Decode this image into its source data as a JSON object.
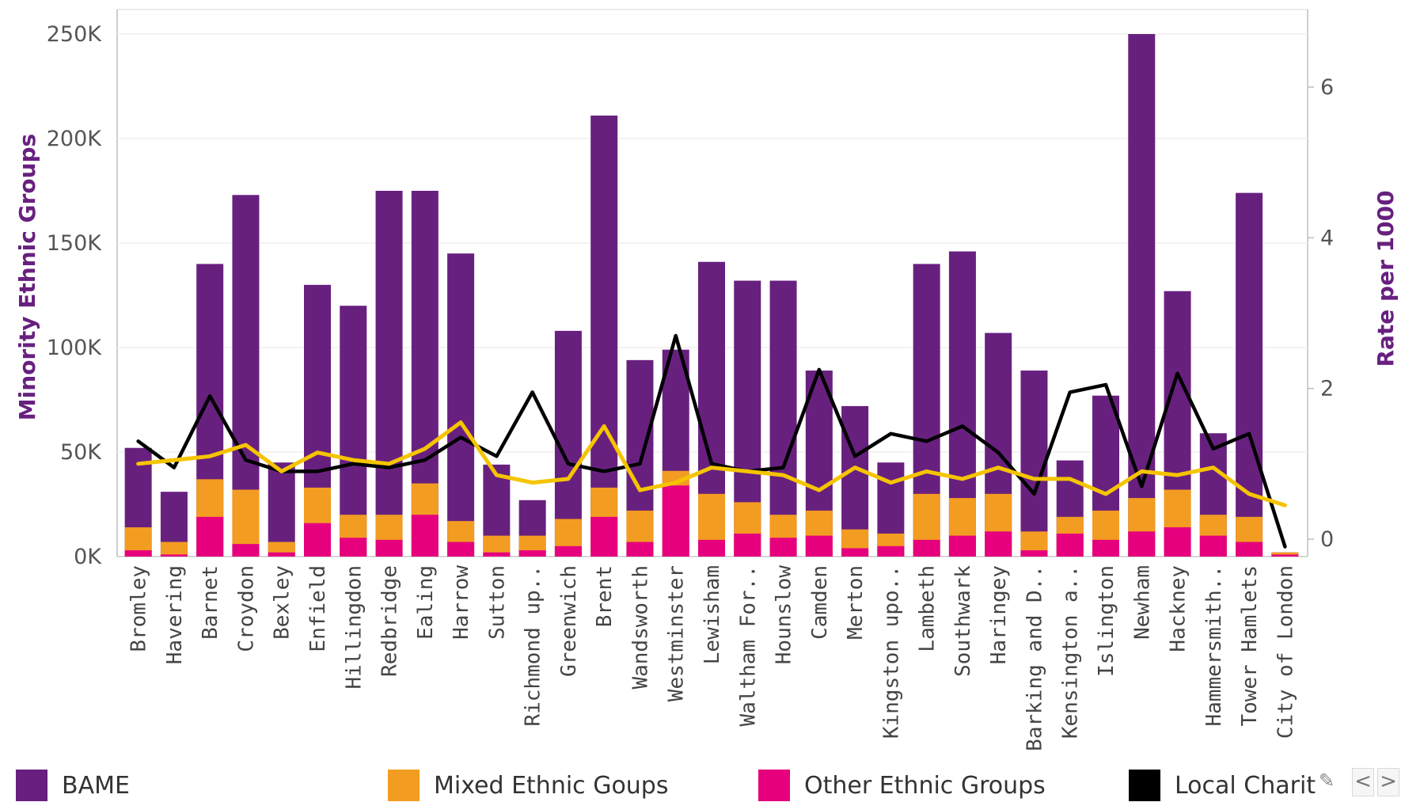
{
  "chart_data": {
    "type": "bar",
    "stacked": true,
    "categories": [
      "Bromley",
      "Havering",
      "Barnet",
      "Croydon",
      "Bexley",
      "Enfield",
      "Hillingdon",
      "Redbridge",
      "Ealing",
      "Harrow",
      "Sutton",
      "Richmond up..",
      "Greenwich",
      "Brent",
      "Wandsworth",
      "Westminster",
      "Lewisham",
      "Waltham For..",
      "Hounslow",
      "Camden",
      "Merton",
      "Kingston upo..",
      "Lambeth",
      "Southwark",
      "Haringey",
      "Barking and D..",
      "Kensington a..",
      "Islington",
      "Newham",
      "Hackney",
      "Hammersmith..",
      "Tower Hamlets",
      "City of London"
    ],
    "ylabel_left": "Minority Ethnic Groups",
    "ylabel_right": "Rate per 1000",
    "ylim_left": [
      0,
      250000
    ],
    "ylim_right": [
      0,
      6.7
    ],
    "yticks_left": [
      "0K",
      "50K",
      "100K",
      "150K",
      "200K",
      "250K"
    ],
    "yticks_right": [
      "0",
      "2",
      "4",
      "6"
    ],
    "grid": true,
    "legend_position": "bottom",
    "bar_series": [
      {
        "name": "BAME",
        "color": "#68207f",
        "values": [
          52000,
          31000,
          140000,
          173000,
          45000,
          130000,
          120000,
          175000,
          175000,
          145000,
          44000,
          27000,
          108000,
          211000,
          94000,
          99000,
          141000,
          132000,
          132000,
          89000,
          72000,
          45000,
          140000,
          146000,
          107000,
          89000,
          46000,
          77000,
          250000,
          127000,
          59000,
          174000,
          2000
        ]
      },
      {
        "name": "Mixed Ethnic Goups",
        "color": "#f39c22",
        "values": [
          14000,
          7000,
          37000,
          32000,
          7000,
          33000,
          20000,
          20000,
          35000,
          17000,
          10000,
          10000,
          18000,
          33000,
          22000,
          41000,
          30000,
          26000,
          20000,
          22000,
          13000,
          11000,
          30000,
          28000,
          30000,
          12000,
          19000,
          22000,
          28000,
          32000,
          20000,
          19000,
          2000
        ]
      },
      {
        "name": "Other Ethnic Groups",
        "color": "#e6007e",
        "values": [
          3000,
          1000,
          19000,
          6000,
          2000,
          16000,
          9000,
          8000,
          20000,
          7000,
          2000,
          3000,
          5000,
          19000,
          7000,
          34000,
          8000,
          11000,
          9000,
          10000,
          4000,
          5000,
          8000,
          10000,
          12000,
          3000,
          11000,
          8000,
          12000,
          14000,
          10000,
          7000,
          1000
        ]
      }
    ],
    "line_series": [
      {
        "name": "Local Charity",
        "color": "#000000",
        "axis": "right",
        "values": [
          1.3,
          0.95,
          1.9,
          1.05,
          0.9,
          0.9,
          1.0,
          0.95,
          1.05,
          1.35,
          1.1,
          1.95,
          1.0,
          0.9,
          1.0,
          2.7,
          1.0,
          0.9,
          0.95,
          2.25,
          1.1,
          1.4,
          1.3,
          1.5,
          1.15,
          0.6,
          1.95,
          2.05,
          0.7,
          2.2,
          1.2,
          1.4,
          -0.1
        ]
      },
      {
        "name": "",
        "color": "#f5c400",
        "axis": "right",
        "values": [
          1.0,
          1.05,
          1.1,
          1.25,
          0.9,
          1.15,
          1.05,
          1.0,
          1.2,
          1.55,
          0.85,
          0.75,
          0.8,
          1.5,
          0.65,
          0.75,
          0.95,
          0.9,
          0.85,
          0.65,
          0.95,
          0.75,
          0.9,
          0.8,
          0.95,
          0.8,
          0.8,
          0.6,
          0.9,
          0.85,
          0.95,
          0.6,
          0.45
        ]
      }
    ]
  },
  "legend": [
    {
      "label": "BAME",
      "color": "#68207f"
    },
    {
      "label": "Mixed Ethnic Goups",
      "color": "#f39c22"
    },
    {
      "label": "Other Ethnic Groups",
      "color": "#e6007e"
    },
    {
      "label": "Local Charit",
      "color": "#000000"
    }
  ],
  "controls": {
    "prev": "<",
    "next": ">",
    "edit_icon": "pencil-icon"
  }
}
